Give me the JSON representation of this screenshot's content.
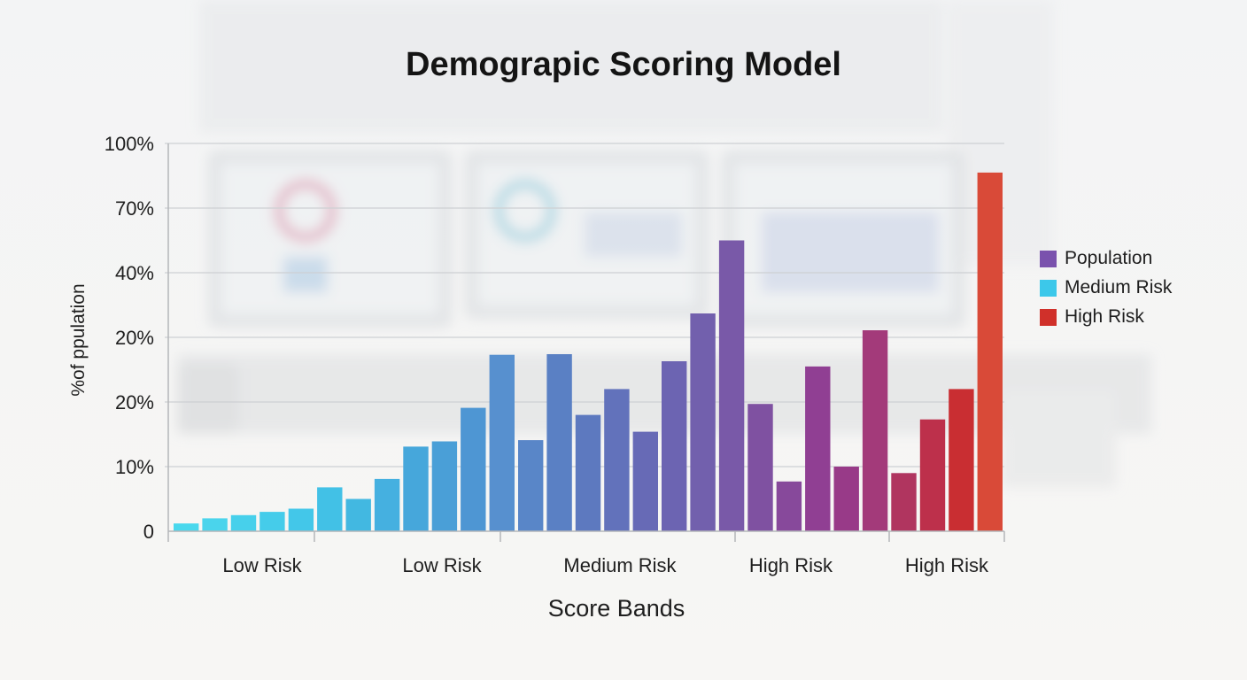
{
  "chart_data": {
    "type": "bar",
    "title": "Demograpic Scoring Model",
    "xlabel": "Score Bands",
    "ylabel": "%of ppulation",
    "y_tick_labels": [
      "0",
      "10%",
      "20%",
      "20%",
      "40%",
      "70%",
      "100%"
    ],
    "x_group_labels": [
      "Low Risk",
      "Low Risk",
      "Medium Risk",
      "High Risk",
      "High Risk"
    ],
    "grid": true,
    "legend_position": "right",
    "legend": [
      {
        "name": "Population",
        "color": "#7a52ad"
      },
      {
        "name": "Medium Risk",
        "color": "#3cc8ea"
      },
      {
        "name": "High Risk",
        "color": "#d0302a"
      }
    ],
    "bar_values_tick_scale": [
      0.12,
      0.2,
      0.25,
      0.3,
      0.35,
      0.68,
      0.5,
      0.81,
      1.31,
      1.39,
      1.91,
      2.73,
      1.41,
      2.74,
      1.8,
      2.2,
      1.54,
      2.63,
      3.37,
      4.5,
      1.97,
      0.77,
      2.55,
      1.0,
      3.11,
      0.9,
      1.73,
      2.2,
      5.55
    ],
    "bar_colors": [
      "#49d8ed",
      "#4ad4ec",
      "#47d0eb",
      "#45ccea",
      "#43c7e9",
      "#42c1e6",
      "#42b8e1",
      "#45b0e0",
      "#46a7db",
      "#4a9fd7",
      "#4e96d3",
      "#5790cf",
      "#5986c8",
      "#5a80c4",
      "#5d79bf",
      "#6272bb",
      "#676ab6",
      "#6c64b2",
      "#7260ad",
      "#7959a8",
      "#7f51a1",
      "#87499b",
      "#903f93",
      "#983a88",
      "#a33a7a",
      "#b0355f",
      "#bd304b",
      "#c92e32",
      "#d94a38"
    ]
  }
}
